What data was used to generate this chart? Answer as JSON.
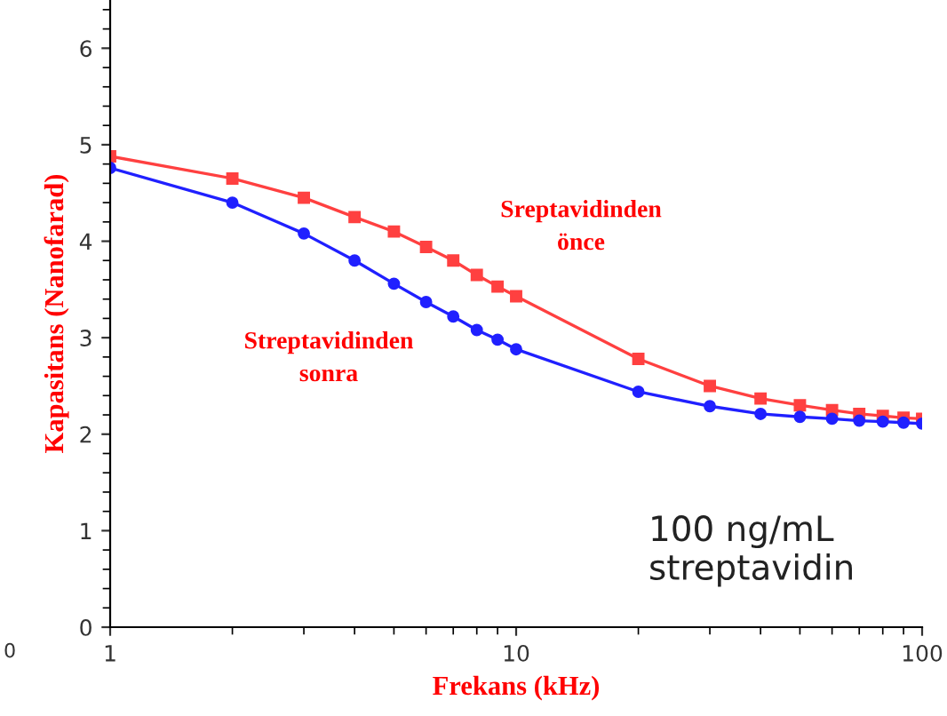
{
  "chart_data": {
    "type": "line",
    "xlabel": "Frekans (kHz)",
    "ylabel": "Kapasitans (Nanofarad)",
    "log": "x",
    "xlim": [
      1,
      100
    ],
    "xticks": [
      1,
      10,
      100
    ],
    "ylim": [
      0,
      6.5
    ],
    "yticks": [
      0,
      1,
      2,
      3,
      4,
      5,
      6
    ],
    "grid": false,
    "legend": false,
    "x": [
      1,
      2,
      3,
      4,
      5,
      6,
      7,
      8,
      9,
      10,
      20,
      30,
      40,
      50,
      60,
      70,
      80,
      90,
      100
    ],
    "series": [
      {
        "color": "#ff4040",
        "marker": "square",
        "values": [
          4.88,
          4.65,
          4.45,
          4.25,
          4.1,
          3.94,
          3.8,
          3.65,
          3.53,
          3.43,
          2.78,
          2.5,
          2.37,
          2.3,
          2.25,
          2.21,
          2.19,
          2.17,
          2.16
        ]
      },
      {
        "color": "#2020ff",
        "marker": "circle",
        "values": [
          4.76,
          4.4,
          4.08,
          3.8,
          3.56,
          3.37,
          3.22,
          3.08,
          2.98,
          2.88,
          2.44,
          2.29,
          2.21,
          2.18,
          2.16,
          2.14,
          2.13,
          2.12,
          2.11
        ]
      }
    ],
    "annotations": [
      "Sreptavidinden\nönce",
      "Streptavidinden\nsonra",
      "100 ng/mL\nstreptavidin",
      "0"
    ]
  }
}
